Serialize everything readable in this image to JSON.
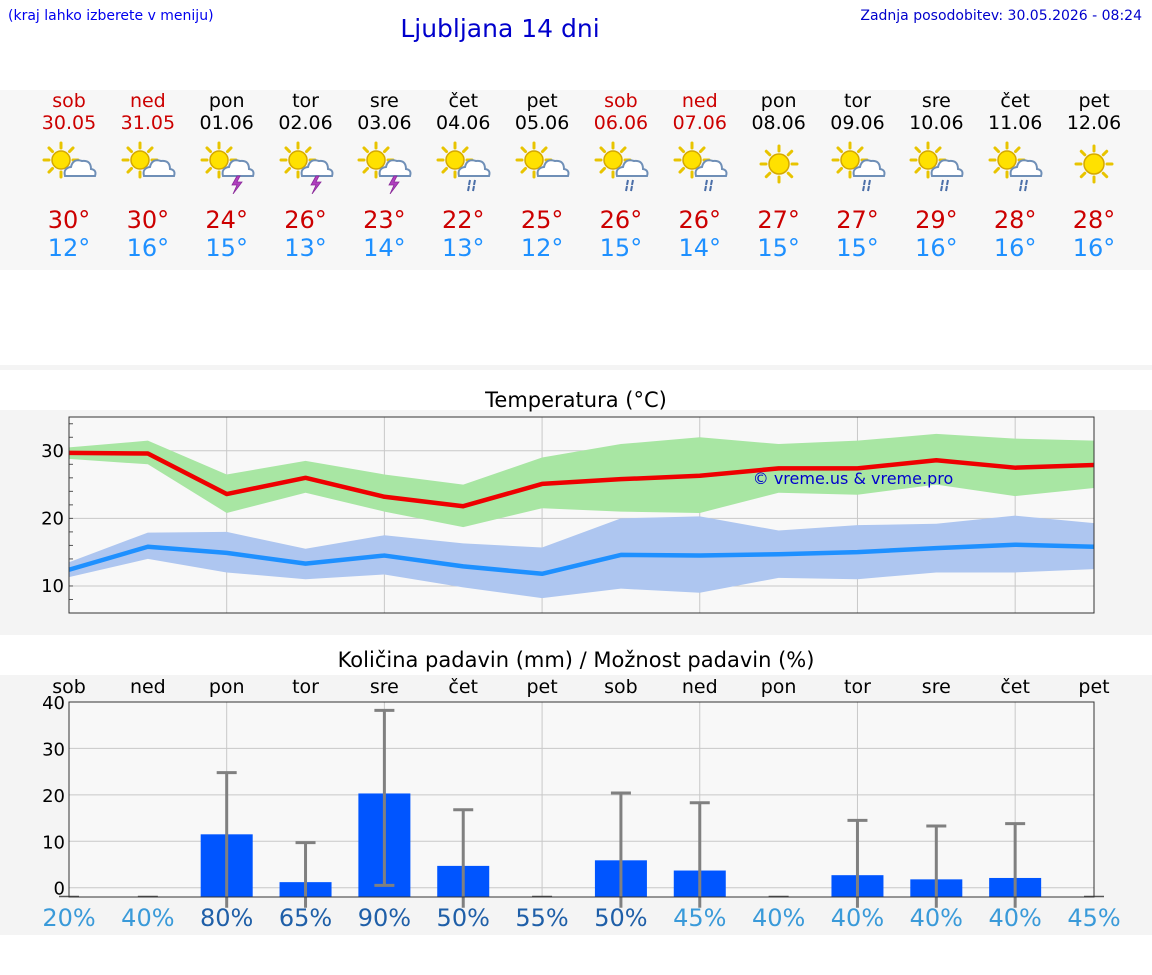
{
  "header": {
    "hint": "(kraj lahko izberete v meniju)",
    "title": "Ljubljana 14 dni",
    "updated": "Zadnja posodobitev: 30.05.2026 - 08:24"
  },
  "days": [
    {
      "name": "sob",
      "date": "30.05",
      "weekend": true,
      "icon": "sun-cloud-icon",
      "max": "30°",
      "min": "12°"
    },
    {
      "name": "ned",
      "date": "31.05",
      "weekend": true,
      "icon": "sun-cloud-icon",
      "max": "30°",
      "min": "16°"
    },
    {
      "name": "pon",
      "date": "01.06",
      "weekend": false,
      "icon": "sun-cloud-thunder-icon",
      "max": "24°",
      "min": "15°"
    },
    {
      "name": "tor",
      "date": "02.06",
      "weekend": false,
      "icon": "sun-cloud-thunder-icon",
      "max": "26°",
      "min": "13°"
    },
    {
      "name": "sre",
      "date": "03.06",
      "weekend": false,
      "icon": "sun-cloud-thunder-icon",
      "max": "23°",
      "min": "14°"
    },
    {
      "name": "čet",
      "date": "04.06",
      "weekend": false,
      "icon": "sun-cloud-rain-icon",
      "max": "22°",
      "min": "13°"
    },
    {
      "name": "pet",
      "date": "05.06",
      "weekend": false,
      "icon": "sun-cloud-icon",
      "max": "25°",
      "min": "12°"
    },
    {
      "name": "sob",
      "date": "06.06",
      "weekend": true,
      "icon": "sun-cloud-rain-icon",
      "max": "26°",
      "min": "15°"
    },
    {
      "name": "ned",
      "date": "07.06",
      "weekend": true,
      "icon": "sun-cloud-rain-icon",
      "max": "26°",
      "min": "14°"
    },
    {
      "name": "pon",
      "date": "08.06",
      "weekend": false,
      "icon": "sun-icon",
      "max": "27°",
      "min": "15°"
    },
    {
      "name": "tor",
      "date": "09.06",
      "weekend": false,
      "icon": "sun-cloud-rain-icon",
      "max": "27°",
      "min": "15°"
    },
    {
      "name": "sre",
      "date": "10.06",
      "weekend": false,
      "icon": "sun-cloud-rain-icon",
      "max": "29°",
      "min": "16°"
    },
    {
      "name": "čet",
      "date": "11.06",
      "weekend": false,
      "icon": "sun-cloud-rain-icon",
      "max": "28°",
      "min": "16°"
    },
    {
      "name": "pet",
      "date": "12.06",
      "weekend": false,
      "icon": "sun-icon",
      "max": "28°",
      "min": "16°"
    }
  ],
  "colors": {
    "weekend": "#cc0000",
    "max": "#cc0000",
    "min": "#1e90ff",
    "title": "#0000cc",
    "max_band": "#a8e6a3",
    "min_band": "#aec6f0",
    "max_line": "#ee0000",
    "min_line": "#1e90ff",
    "bar": "#0055ff",
    "errbar": "#808080"
  },
  "chart_data": [
    {
      "type": "line",
      "title": "Temperatura (°C)",
      "watermark": "© vreme.us & vreme.pro",
      "ylim": [
        6,
        35
      ],
      "yticks": [
        10,
        20,
        30
      ],
      "grid": true,
      "series": [
        {
          "values": [
            29.7,
            29.6,
            23.6,
            26.0,
            23.2,
            21.8,
            25.1,
            25.8,
            26.3,
            27.4,
            27.4,
            28.6,
            27.5,
            27.9
          ],
          "band_high": [
            30.5,
            31.5,
            26.5,
            28.5,
            26.5,
            25.0,
            29.0,
            31.0,
            32.0,
            31.0,
            31.5,
            32.5,
            31.8,
            31.5
          ],
          "band_low": [
            28.8,
            28.0,
            20.8,
            23.8,
            21.0,
            18.7,
            21.5,
            21.0,
            20.8,
            23.8,
            23.5,
            25.0,
            23.3,
            24.5
          ]
        },
        {
          "values": [
            12.4,
            15.8,
            14.9,
            13.3,
            14.5,
            12.9,
            11.8,
            14.6,
            14.5,
            14.7,
            15.0,
            15.6,
            16.1,
            15.8
          ],
          "band_high": [
            13.5,
            17.9,
            18.0,
            15.5,
            17.5,
            16.3,
            15.7,
            20.0,
            20.3,
            18.2,
            19.0,
            19.2,
            20.4,
            19.3
          ],
          "band_low": [
            11.3,
            14.0,
            12.0,
            11.0,
            11.7,
            9.8,
            8.2,
            9.6,
            9.0,
            11.2,
            11.0,
            12.0,
            12.0,
            12.5
          ]
        }
      ]
    },
    {
      "type": "bar",
      "title": "Količina padavin (mm) / Možnost padavin (%)",
      "ylim": [
        -2,
        40
      ],
      "yticks": [
        0,
        10,
        20,
        30,
        40
      ],
      "categories": [
        "sob",
        "ned",
        "pon",
        "tor",
        "sre",
        "čet",
        "pet",
        "sob",
        "ned",
        "pon",
        "tor",
        "sre",
        "čet",
        "pet"
      ],
      "values": [
        0,
        0,
        11.5,
        1.2,
        20.3,
        4.7,
        0,
        5.9,
        3.7,
        0,
        2.7,
        1.8,
        2.1,
        0
      ],
      "err_high": [
        0,
        0,
        24.8,
        9.7,
        38.2,
        16.8,
        0,
        20.4,
        18.3,
        0,
        14.5,
        13.3,
        13.8,
        0
      ],
      "err_low": [
        0,
        0,
        0,
        0,
        0.5,
        0,
        0,
        0,
        0,
        0,
        0,
        0,
        0,
        0
      ],
      "probability": [
        "20%",
        "40%",
        "80%",
        "65%",
        "90%",
        "50%",
        "55%",
        "50%",
        "45%",
        "40%",
        "40%",
        "40%",
        "40%",
        "45%"
      ],
      "grid": true
    }
  ]
}
